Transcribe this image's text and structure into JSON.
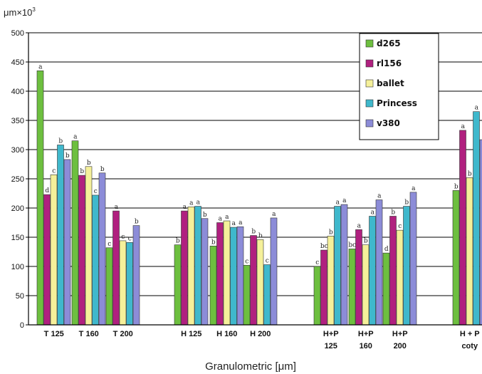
{
  "chart_data": {
    "type": "bar",
    "unit_label": "μm×10",
    "unit_exponent": "3",
    "xlabel": "Granulometric [μm]",
    "ylim": [
      0,
      500
    ],
    "yticks": [
      "0",
      "50",
      "100",
      "150",
      "200",
      "250",
      "300",
      "350",
      "400",
      "450",
      "500"
    ],
    "grid": "horizontal",
    "legend_position": "top-right",
    "categories": [
      {
        "lines": [
          "T 125"
        ]
      },
      {
        "lines": [
          "T 160"
        ]
      },
      {
        "lines": [
          "T 200"
        ]
      },
      {
        "lines": [
          "H 125"
        ]
      },
      {
        "lines": [
          "H 160"
        ]
      },
      {
        "lines": [
          "H 200"
        ]
      },
      {
        "lines": [
          "H+P",
          "125"
        ]
      },
      {
        "lines": [
          "H+P",
          "160"
        ]
      },
      {
        "lines": [
          "H+P",
          "200"
        ]
      },
      {
        "lines": [
          "H + P",
          "coty"
        ]
      }
    ],
    "series": [
      {
        "name": "d265",
        "color": "#6dbf3f",
        "values": [
          435,
          315,
          132,
          137,
          135,
          102,
          100,
          130,
          123,
          230
        ],
        "labels": [
          "a",
          "a",
          "c",
          "b",
          "b",
          "c",
          "c",
          "bc",
          "d",
          "b"
        ]
      },
      {
        "name": "rl156",
        "color": "#b0207f",
        "values": [
          223,
          256,
          195,
          195,
          175,
          153,
          128,
          163,
          186,
          333
        ],
        "labels": [
          "d",
          "b",
          "a",
          "a",
          "a",
          "b",
          "bc",
          "a",
          "b",
          "a"
        ]
      },
      {
        "name": "ballet",
        "color": "#f5f09a",
        "values": [
          257,
          271,
          144,
          202,
          178,
          146,
          152,
          137,
          162,
          252
        ],
        "labels": [
          "c",
          "b",
          "c",
          "a",
          "a",
          "b",
          "b",
          "b",
          "c",
          "b"
        ]
      },
      {
        "name": "Princess",
        "color": "#3fb8cc",
        "values": [
          308,
          222,
          141,
          203,
          167,
          103,
          203,
          186,
          203,
          365
        ],
        "labels": [
          "b",
          "c",
          "c",
          "a",
          "a",
          "c",
          "a",
          "a",
          "b",
          "a"
        ]
      },
      {
        "name": "v380",
        "color": "#8c8cd8",
        "values": [
          283,
          260,
          170,
          182,
          168,
          183,
          206,
          214,
          227,
          317
        ],
        "labels": [
          "b",
          "b",
          "b",
          "b",
          "a",
          "a",
          "a",
          "a",
          "a",
          ""
        ]
      }
    ]
  }
}
